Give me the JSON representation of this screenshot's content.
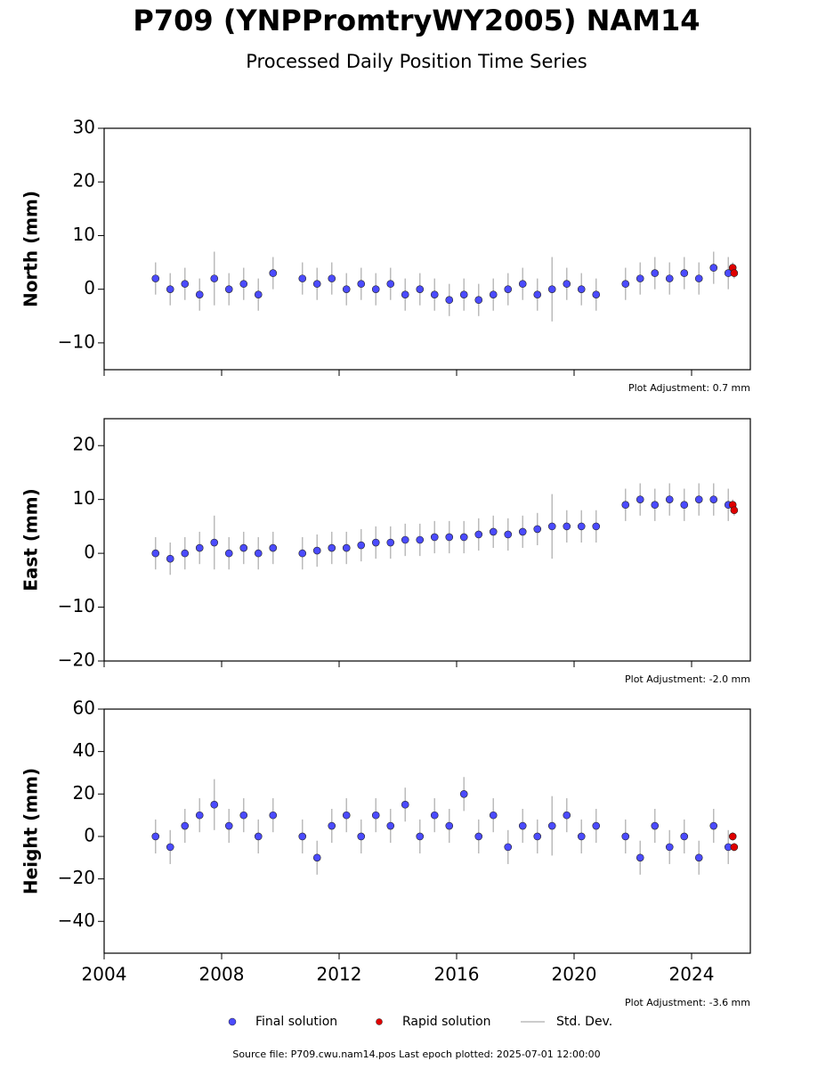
{
  "title": "P709 (YNPPromtryWY2005) NAM14",
  "subtitle": "Processed Daily Position Time Series",
  "source": "Source file: P709.cwu.nam14.pos  Last epoch plotted: 2025-07-01 12:00:00",
  "legend": [
    {
      "name": "Final solution",
      "color": "#4b4bff"
    },
    {
      "name": "Rapid solution",
      "color": "#e00000"
    },
    {
      "name": "Std. Dev.",
      "color": "#bbbbbb"
    }
  ],
  "chart_data": [
    {
      "type": "scatter",
      "ylabel": "North (mm)",
      "annotation": "Plot Adjustment: 0.7 mm",
      "xlim": [
        2004,
        2026
      ],
      "xticks": [
        2004,
        2008,
        2012,
        2016,
        2020,
        2024
      ],
      "ylim": [
        -15,
        30
      ],
      "yticks": [
        {
          "value": -10,
          "label": "−10"
        },
        0,
        10,
        20,
        30
      ],
      "series": [
        {
          "color": "#4b4bff",
          "x": [
            2005.75,
            2006.25,
            2006.75,
            2007.25,
            2007.75,
            2008.25,
            2008.75,
            2009.25,
            2009.75,
            2010.75,
            2011.25,
            2011.75,
            2012.25,
            2012.75,
            2013.25,
            2013.75,
            2014.25,
            2014.75,
            2015.25,
            2015.75,
            2016.25,
            2016.75,
            2017.25,
            2017.75,
            2018.25,
            2018.75,
            2019.25,
            2019.75,
            2020.25,
            2020.75,
            2021.75,
            2022.25,
            2022.75,
            2023.25,
            2023.75,
            2024.25,
            2024.75,
            2025.25
          ],
          "values": [
            2,
            0,
            1,
            -1,
            2,
            0,
            1,
            -1,
            3,
            2,
            1,
            2,
            0,
            1,
            0,
            1,
            -1,
            0,
            -1,
            -2,
            -1,
            -2,
            -1,
            0,
            1,
            -1,
            0,
            1,
            0,
            -1,
            1,
            2,
            3,
            2,
            3,
            2,
            4,
            3
          ],
          "errors": [
            3,
            3,
            3,
            3,
            5,
            3,
            3,
            3,
            3,
            3,
            3,
            3,
            3,
            3,
            3,
            3,
            3,
            3,
            3,
            3,
            3,
            3,
            3,
            3,
            3,
            3,
            6,
            3,
            3,
            3,
            3,
            3,
            3,
            3,
            3,
            3,
            3,
            3
          ]
        },
        {
          "color": "#e00000",
          "x": [
            2025.4,
            2025.45
          ],
          "values": [
            4,
            3
          ],
          "errors": [
            1,
            1
          ]
        }
      ]
    },
    {
      "type": "scatter",
      "ylabel": "East (mm)",
      "annotation": "Plot Adjustment: -2.0 mm",
      "xlim": [
        2004,
        2026
      ],
      "xticks": [
        2004,
        2008,
        2012,
        2016,
        2020,
        2024
      ],
      "ylim": [
        -20,
        25
      ],
      "yticks": [
        {
          "value": -20,
          "label": "−20"
        },
        {
          "value": -10,
          "label": "−10"
        },
        0,
        10,
        20
      ],
      "series": [
        {
          "color": "#4b4bff",
          "x": [
            2005.75,
            2006.25,
            2006.75,
            2007.25,
            2007.75,
            2008.25,
            2008.75,
            2009.25,
            2009.75,
            2010.75,
            2011.25,
            2011.75,
            2012.25,
            2012.75,
            2013.25,
            2013.75,
            2014.25,
            2014.75,
            2015.25,
            2015.75,
            2016.25,
            2016.75,
            2017.25,
            2017.75,
            2018.25,
            2018.75,
            2019.25,
            2019.75,
            2020.25,
            2020.75,
            2021.75,
            2022.25,
            2022.75,
            2023.25,
            2023.75,
            2024.25,
            2024.75,
            2025.25
          ],
          "values": [
            0,
            -1,
            0,
            1,
            2,
            0,
            1,
            0,
            1,
            0,
            0.5,
            1,
            1,
            1.5,
            2,
            2,
            2.5,
            2.5,
            3,
            3,
            3,
            3.5,
            4,
            3.5,
            4,
            4.5,
            5,
            5,
            5,
            5,
            9,
            10,
            9,
            10,
            9,
            10,
            10,
            9
          ],
          "errors": [
            3,
            3,
            3,
            3,
            5,
            3,
            3,
            3,
            3,
            3,
            3,
            3,
            3,
            3,
            3,
            3,
            3,
            3,
            3,
            3,
            3,
            3,
            3,
            3,
            3,
            3,
            6,
            3,
            3,
            3,
            3,
            3,
            3,
            3,
            3,
            3,
            3,
            3
          ]
        },
        {
          "color": "#e00000",
          "x": [
            2025.4,
            2025.45
          ],
          "values": [
            9,
            8
          ],
          "errors": [
            1,
            1
          ]
        }
      ]
    },
    {
      "type": "scatter",
      "ylabel": "Height (mm)",
      "annotation": "Plot Adjustment: -3.6 mm",
      "xlim": [
        2004,
        2026
      ],
      "xticks": [
        2004,
        2008,
        2012,
        2016,
        2020,
        2024
      ],
      "ylim": [
        -55,
        60
      ],
      "yticks": [
        {
          "value": -40,
          "label": "−40"
        },
        {
          "value": -20,
          "label": "−20"
        },
        0,
        20,
        40,
        60
      ],
      "series": [
        {
          "color": "#4b4bff",
          "x": [
            2005.75,
            2006.25,
            2006.75,
            2007.25,
            2007.75,
            2008.25,
            2008.75,
            2009.25,
            2009.75,
            2010.75,
            2011.25,
            2011.75,
            2012.25,
            2012.75,
            2013.25,
            2013.75,
            2014.25,
            2014.75,
            2015.25,
            2015.75,
            2016.25,
            2016.75,
            2017.25,
            2017.75,
            2018.25,
            2018.75,
            2019.25,
            2019.75,
            2020.25,
            2020.75,
            2021.75,
            2022.25,
            2022.75,
            2023.25,
            2023.75,
            2024.25,
            2024.75,
            2025.25
          ],
          "values": [
            0,
            -5,
            5,
            10,
            15,
            5,
            10,
            0,
            10,
            0,
            -10,
            5,
            10,
            0,
            10,
            5,
            15,
            0,
            10,
            5,
            20,
            0,
            10,
            -5,
            5,
            0,
            5,
            10,
            0,
            5,
            0,
            -10,
            5,
            -5,
            0,
            -10,
            5,
            -5
          ],
          "errors": [
            8,
            8,
            8,
            8,
            12,
            8,
            8,
            8,
            8,
            8,
            8,
            8,
            8,
            8,
            8,
            8,
            8,
            8,
            8,
            8,
            8,
            8,
            8,
            8,
            8,
            8,
            14,
            8,
            8,
            8,
            8,
            8,
            8,
            8,
            8,
            8,
            8,
            8
          ]
        },
        {
          "color": "#e00000",
          "x": [
            2025.4,
            2025.45
          ],
          "values": [
            0,
            -5
          ],
          "errors": [
            2,
            2
          ]
        }
      ]
    }
  ]
}
